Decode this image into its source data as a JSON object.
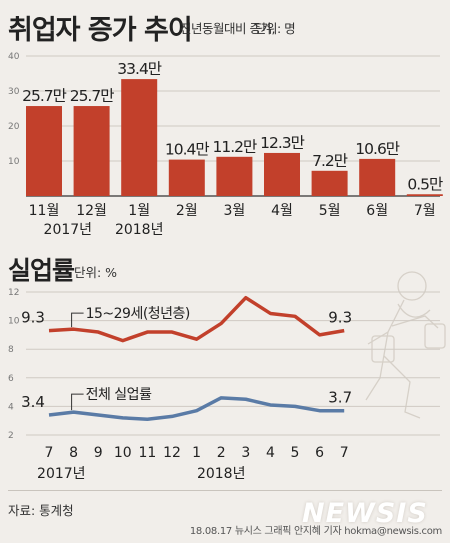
{
  "header": {
    "title": "취업자 증가 추이",
    "subtitle": "전년동월대비 증가,",
    "unit": "단위: 명"
  },
  "section2": {
    "title": "실업률",
    "unit": "단위: %"
  },
  "footer": {
    "source": "자료: 통계청",
    "credit": "18.08.17 뉴시스 그래픽 안지혜 기자 hokma@newsis.com",
    "logo": "NEWSIS"
  },
  "colors": {
    "bar": "#c2402b",
    "youth_line": "#c2402b",
    "total_line": "#5a7ba6",
    "background": "#f1eeea"
  },
  "chart_data": [
    {
      "type": "bar",
      "title": "취업자 증가 추이",
      "subtitle": "전년동월대비 증가",
      "unit": "명",
      "categories": [
        "11월",
        "12월",
        "1월",
        "2월",
        "3월",
        "4월",
        "5월",
        "6월",
        "7월"
      ],
      "values": [
        257000,
        257000,
        334000,
        104000,
        112000,
        123000,
        72000,
        106000,
        5000
      ],
      "value_labels": [
        "25.7만",
        "25.7만",
        "33.4만",
        "10.4만",
        "11.2만",
        "12.3만",
        "7.2만",
        "10.6만",
        "0.5만"
      ],
      "year_labels": [
        "2017년",
        "2018년"
      ],
      "ylim": [
        0,
        40
      ],
      "yticks": [
        10,
        20,
        30,
        40
      ],
      "ytick_scale": "만",
      "grid": true
    },
    {
      "type": "line",
      "title": "실업률",
      "unit": "%",
      "x": [
        "7",
        "8",
        "9",
        "10",
        "11",
        "12",
        "1",
        "2",
        "3",
        "4",
        "5",
        "6",
        "7"
      ],
      "year_labels": [
        "2017년",
        "2018년"
      ],
      "ylim": [
        2,
        12
      ],
      "yticks": [
        2,
        4,
        6,
        8,
        10,
        12
      ],
      "grid": true,
      "series": [
        {
          "name": "15~29세(청년층)",
          "values": [
            9.3,
            9.4,
            9.2,
            8.6,
            9.2,
            9.2,
            8.7,
            9.8,
            11.6,
            10.5,
            10.3,
            9.0,
            9.3
          ],
          "start_label": "9.3",
          "end_label": "9.3"
        },
        {
          "name": "전체 실업률",
          "values": [
            3.4,
            3.6,
            3.4,
            3.2,
            3.1,
            3.3,
            3.7,
            4.6,
            4.5,
            4.1,
            4.0,
            3.7,
            3.7
          ],
          "start_label": "3.4",
          "end_label": "3.7"
        }
      ]
    }
  ]
}
